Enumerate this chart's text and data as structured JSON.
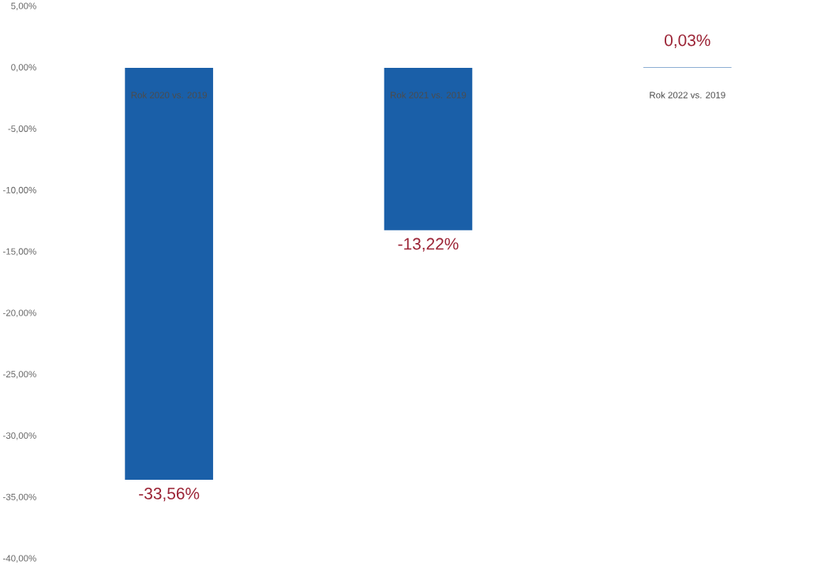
{
  "chart_data": {
    "type": "bar",
    "categories": [
      "Rok 2020 vs. 2019",
      "Rok 2021 vs. 2019",
      "Rok 2022 vs. 2019"
    ],
    "values": [
      -33.56,
      -13.22,
      0.03
    ],
    "value_labels": [
      "-33,56%",
      "-13,22%",
      "0,03%"
    ],
    "color": "#1a5fa8",
    "ylim": [
      -40,
      5
    ],
    "yticks": [
      {
        "value": 5,
        "label": "5,00%"
      },
      {
        "value": 0,
        "label": "0,00%"
      },
      {
        "value": -5,
        "label": "-5,00%"
      },
      {
        "value": -10,
        "label": "-10,00%"
      },
      {
        "value": -15,
        "label": "-15,00%"
      },
      {
        "value": -20,
        "label": "-20,00%"
      },
      {
        "value": -25,
        "label": "-25,00%"
      },
      {
        "value": -30,
        "label": "-30,00%"
      },
      {
        "value": -35,
        "label": "-35,00%"
      },
      {
        "value": -40,
        "label": "-40,00%"
      }
    ],
    "grid": false
  }
}
